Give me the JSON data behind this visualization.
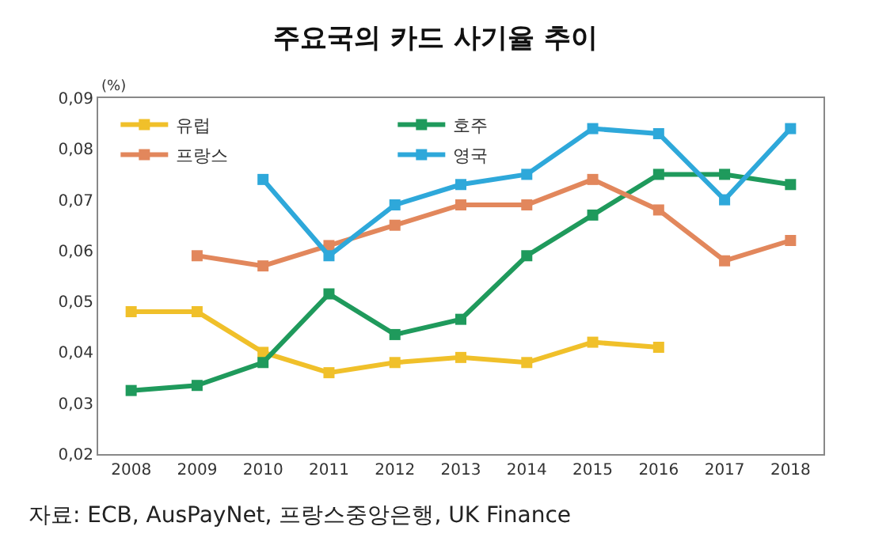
{
  "chart_data": {
    "type": "line",
    "title": "주요국의 카드 사기율 추이",
    "ylabel": "(%)",
    "categories": [
      "2008",
      "2009",
      "2010",
      "2011",
      "2012",
      "2013",
      "2014",
      "2015",
      "2016",
      "2017",
      "2018"
    ],
    "series": [
      {
        "name": "유럽",
        "color": "#f0c02a",
        "values": [
          0.048,
          0.048,
          0.04,
          0.036,
          0.038,
          0.039,
          0.038,
          0.042,
          0.041,
          null,
          null
        ]
      },
      {
        "name": "호주",
        "color": "#1f9a5c",
        "values": [
          0.0325,
          0.0335,
          0.038,
          0.0515,
          0.0435,
          0.0465,
          0.059,
          0.067,
          0.075,
          0.075,
          0.073
        ]
      },
      {
        "name": "프랑스",
        "color": "#e2875c",
        "values": [
          null,
          0.059,
          0.057,
          0.061,
          0.065,
          0.069,
          0.069,
          0.074,
          0.068,
          0.058,
          0.062
        ]
      },
      {
        "name": "영국",
        "color": "#2ea8da",
        "values": [
          null,
          null,
          0.074,
          0.059,
          0.069,
          0.073,
          0.075,
          0.084,
          0.083,
          0.07,
          0.084
        ]
      }
    ],
    "ylim": [
      0.02,
      0.09
    ],
    "yticks": [
      {
        "value": 0.02,
        "label": "0,02"
      },
      {
        "value": 0.03,
        "label": "0,03"
      },
      {
        "value": 0.04,
        "label": "0,04"
      },
      {
        "value": 0.05,
        "label": "0,05"
      },
      {
        "value": 0.06,
        "label": "0,06"
      },
      {
        "value": 0.07,
        "label": "0,07"
      },
      {
        "value": 0.08,
        "label": "0,08"
      },
      {
        "value": 0.09,
        "label": "0,09"
      }
    ],
    "grid": false,
    "legend": "top left",
    "marker": "square",
    "line_style": "solid",
    "annotations": [
      "자료: ECB, AusPayNet, 프랑스중앙은행, UK Finance"
    ]
  }
}
